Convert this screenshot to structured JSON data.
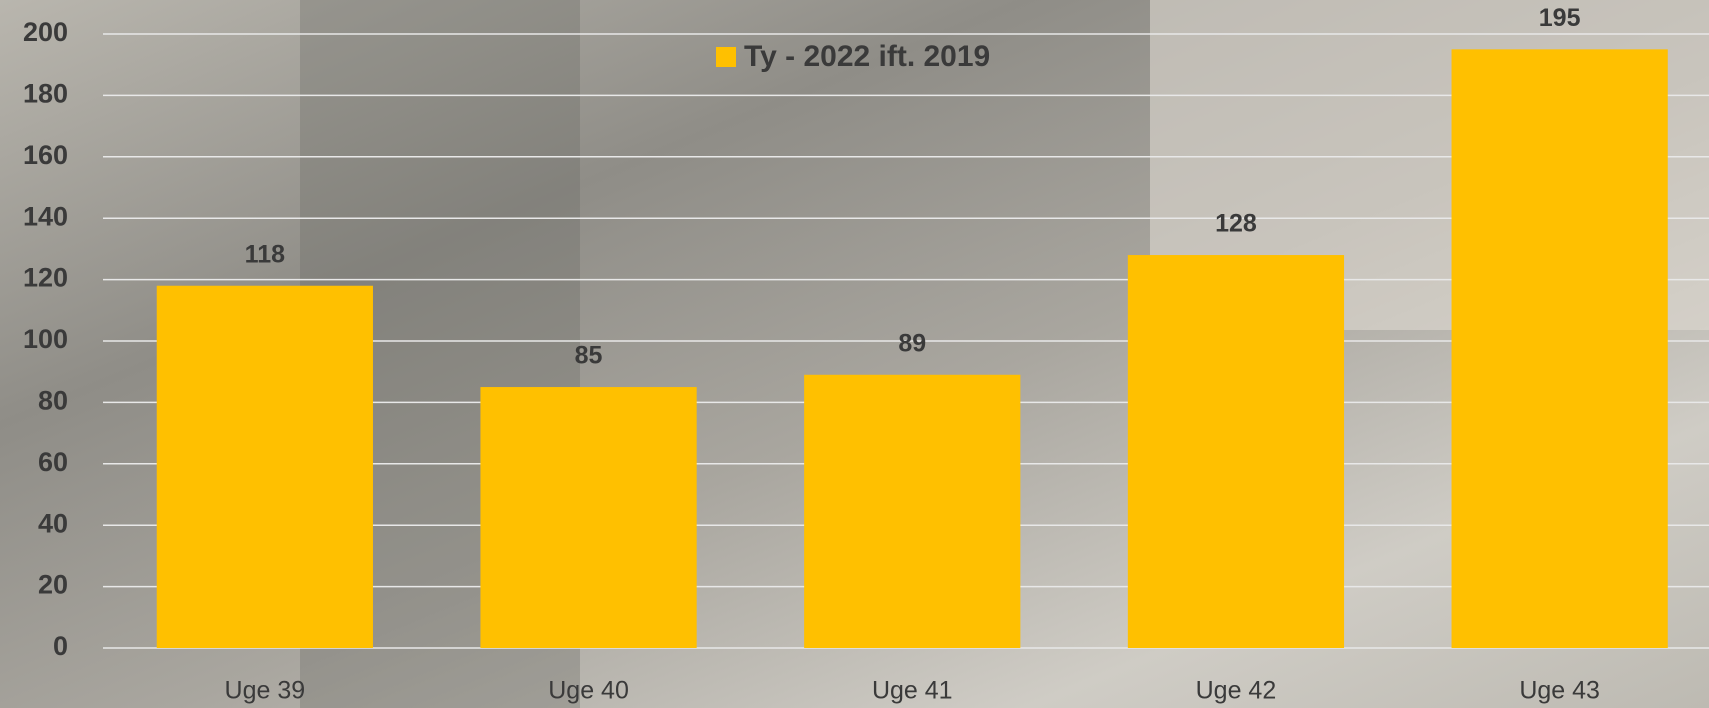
{
  "chart_data": {
    "type": "bar",
    "legend_label": "Ty - 2022 ift. 2019",
    "categories": [
      "Uge 39",
      "Uge 40",
      "Uge 41",
      "Uge 42",
      "Uge 43"
    ],
    "values": [
      118,
      85,
      89,
      128,
      195
    ],
    "color": "#ffc000",
    "ylim": [
      0,
      200
    ],
    "yticks": [
      0,
      20,
      40,
      60,
      80,
      100,
      120,
      140,
      160,
      180,
      200
    ],
    "grid": true
  }
}
